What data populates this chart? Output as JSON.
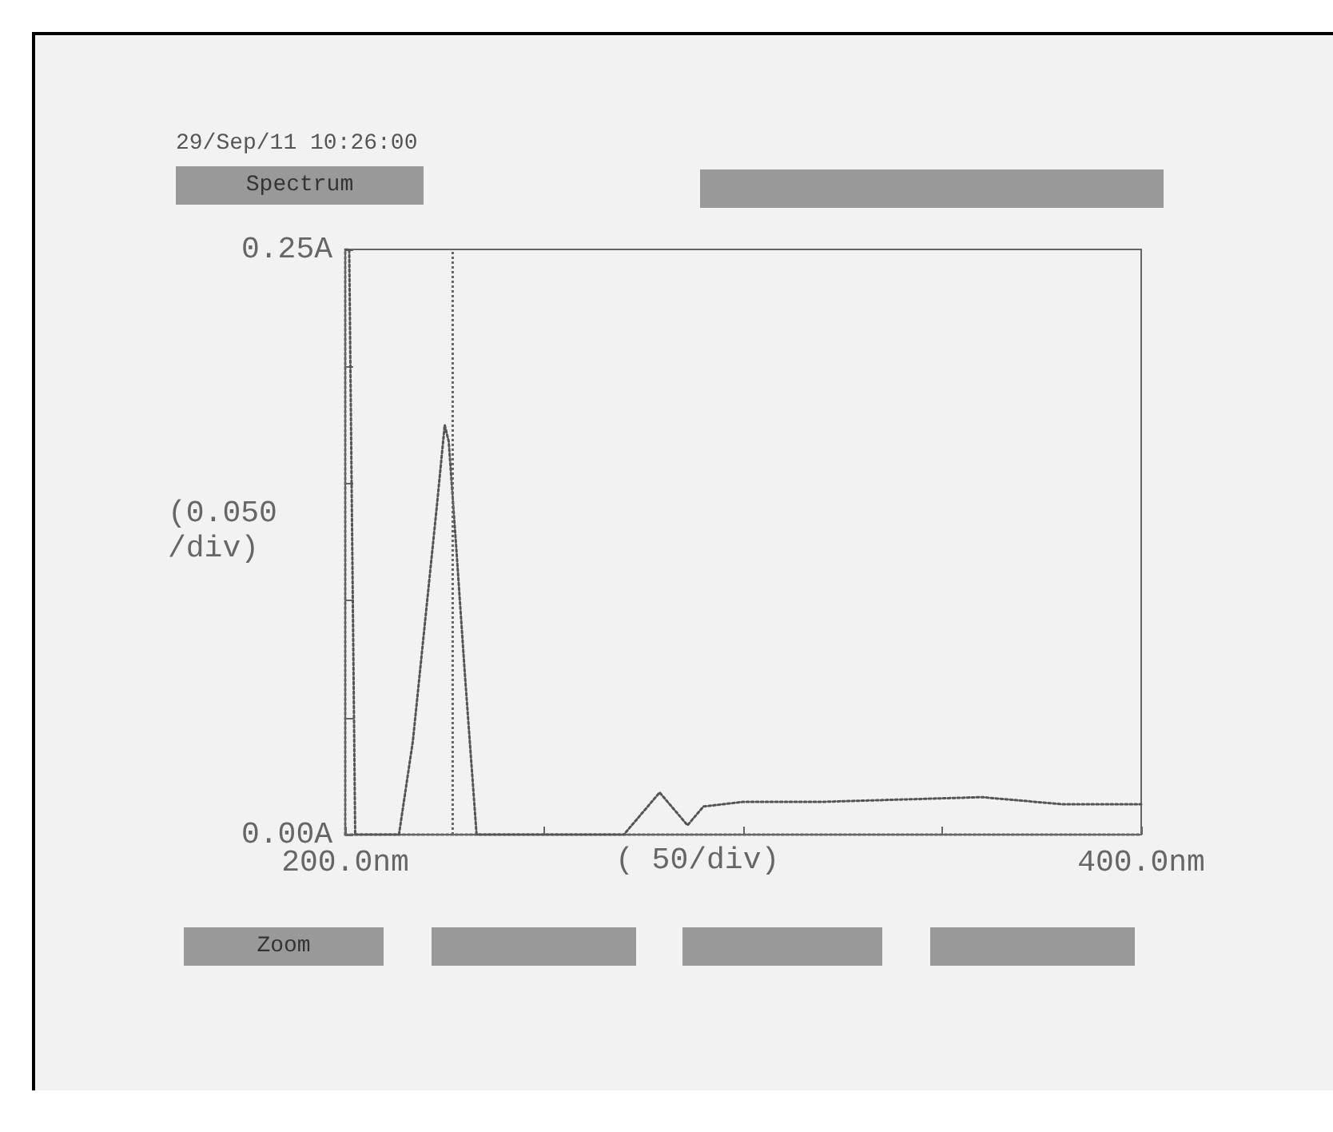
{
  "chart_data": {
    "type": "line",
    "xlabel": "( 50/div)",
    "ylabel": "(0.050 /div)",
    "annotations": [
      "29/Sep/11 10:26:00",
      "Spectrum",
      "Zoom"
    ],
    "x": [
      200,
      201,
      202.5,
      213.5,
      217,
      220,
      223,
      225,
      226,
      228,
      230,
      233,
      270,
      275,
      279,
      283,
      286,
      290,
      300,
      320,
      340,
      360,
      380,
      400
    ],
    "series": [
      {
        "color": "#555555",
        "values": [
          0.25,
          0.25,
          0,
          0,
          0.04,
          0.09,
          0.14,
          0.175,
          0.168,
          0.12,
          0.07,
          0,
          0,
          0.01,
          0.018,
          0.01,
          0.004,
          0.012,
          0.014,
          0.014,
          0.015,
          0.016,
          0.013,
          0.013
        ]
      }
    ],
    "xlim": [
      200,
      400
    ],
    "xticks": [
      {
        "value": 200,
        "label": "200.0nm"
      },
      {
        "value": 250,
        "label": null
      },
      {
        "value": 300,
        "label": null
      },
      {
        "value": 350,
        "label": null
      },
      {
        "value": 400,
        "label": "400.0nm"
      }
    ],
    "ylim": [
      0,
      0.25
    ],
    "yticks": [
      {
        "value": 0,
        "label": "0.00A"
      },
      {
        "value": 0.05,
        "label": null
      },
      {
        "value": 0.1,
        "label": null
      },
      {
        "value": 0.15,
        "label": null
      },
      {
        "value": 0.2,
        "label": null
      },
      {
        "value": 0.25,
        "label": "0.25A"
      }
    ],
    "ref_lines": [
      {
        "axis": "x",
        "value": 227,
        "line_style": "dotted"
      }
    ],
    "grid": false,
    "marker": "none",
    "line_style": "dotted"
  }
}
